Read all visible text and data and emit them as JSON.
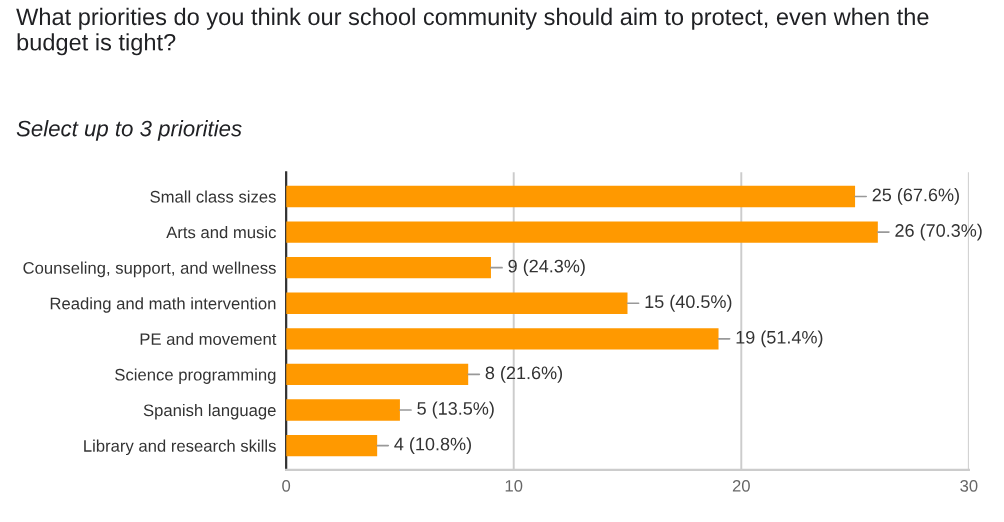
{
  "chart_data": {
    "type": "bar",
    "orientation": "horizontal",
    "title": "What priorities do you think our school community should aim to protect, even when the budget is tight?",
    "subtitle": "Select up to 3 priorities",
    "categories": [
      "Small class sizes",
      "Arts and music",
      "Counseling, support, and wellness",
      "Reading and math intervention",
      "PE and movement",
      "Science programming",
      "Spanish language",
      "Library and research skills"
    ],
    "values": [
      25,
      26,
      9,
      15,
      19,
      8,
      5,
      4
    ],
    "value_labels": [
      "25 (67.6%)",
      "26 (70.3%)",
      "9 (24.3%)",
      "15 (40.5%)",
      "19 (51.4%)",
      "8 (21.6%)",
      "5 (13.5%)",
      "4 (10.8%)"
    ],
    "color": "#ff9900",
    "xlim": [
      0,
      30
    ],
    "xticks": [
      0,
      10,
      20,
      30
    ],
    "grid": "x"
  }
}
